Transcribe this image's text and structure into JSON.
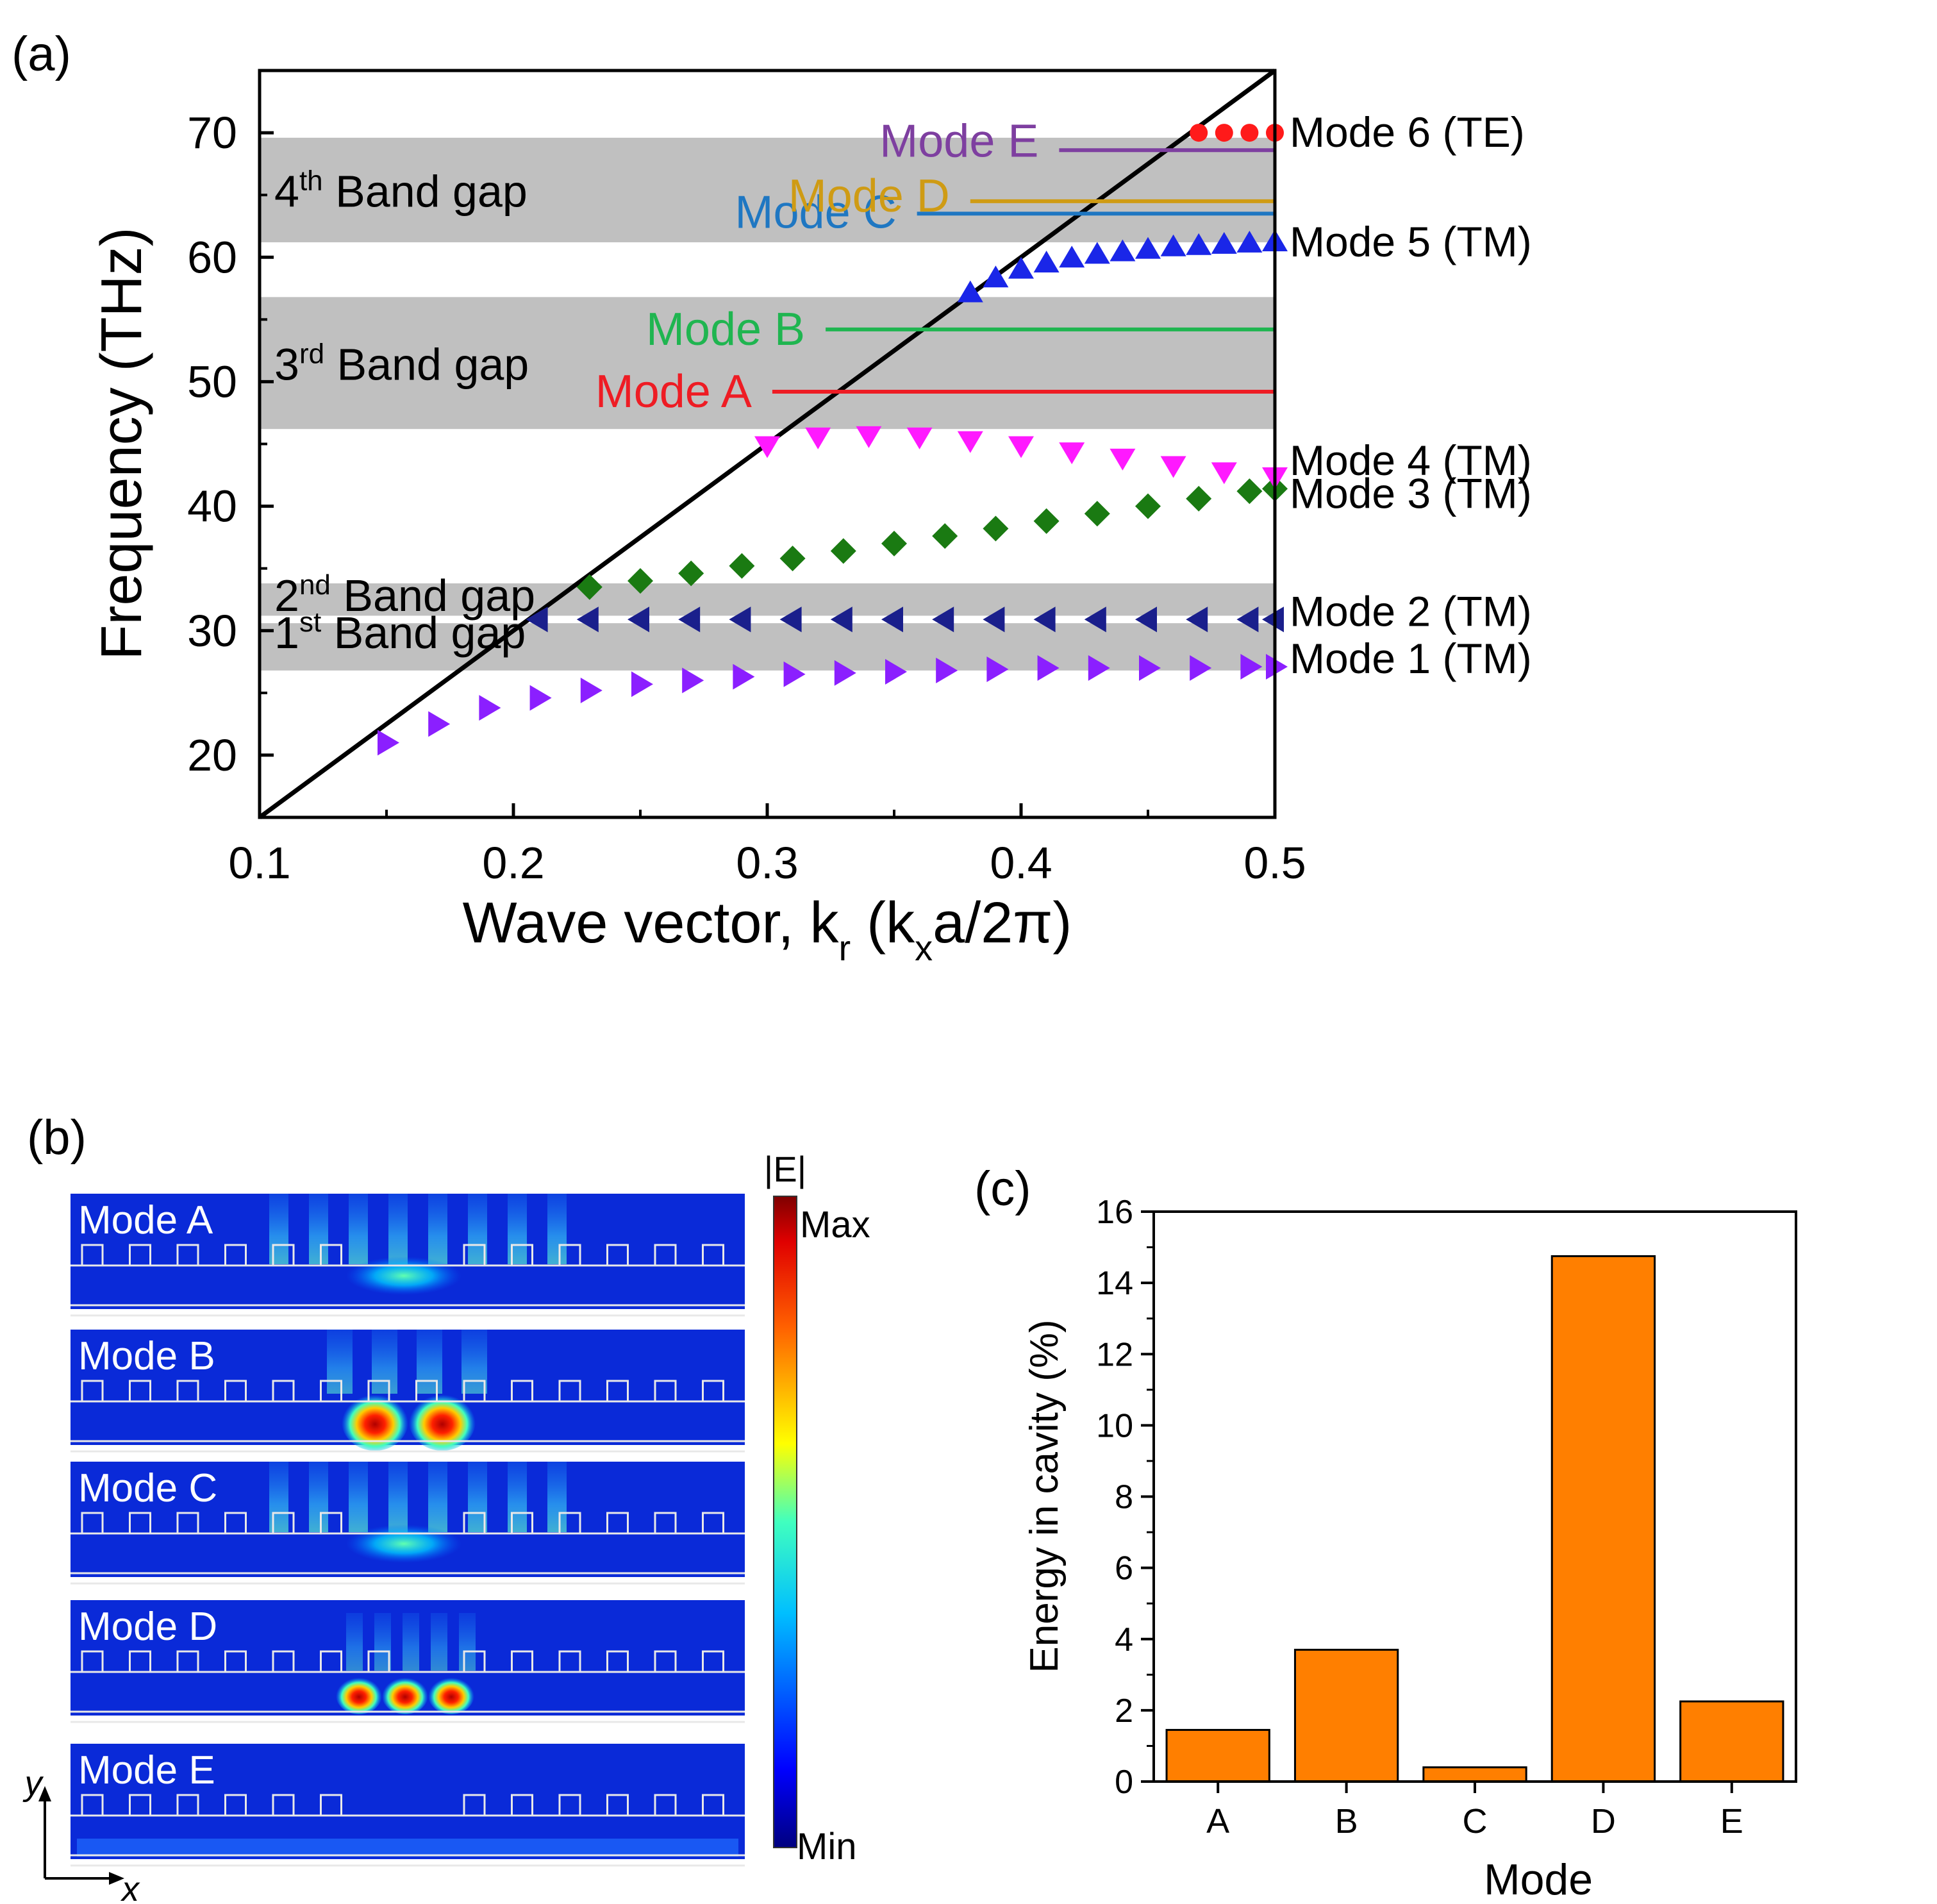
{
  "panels": {
    "a": "(a)",
    "b": "(b)",
    "c": "(c)"
  },
  "chart_data": [
    {
      "type": "scatter",
      "panel": "(a)",
      "xlabel": "Wave vector, k_r (k_x a/2π)",
      "ylabel": "Frequency (THz)",
      "xlim": [
        0.1,
        0.5
      ],
      "ylim": [
        15,
        75
      ],
      "xticks": [
        "0.1",
        "0.2",
        "0.3",
        "0.4",
        "0.5"
      ],
      "yticks": [
        "20",
        "30",
        "40",
        "50",
        "60",
        "70"
      ],
      "light_line": {
        "x": [
          0.1,
          0.5
        ],
        "y": [
          15,
          75
        ]
      },
      "band_gaps": [
        {
          "label": "1st Band gap",
          "num": "1",
          "sup": "st",
          "rest": " Band gap",
          "y0": 26.8,
          "y1": 30.6
        },
        {
          "label": "2nd Band gap",
          "num": "2",
          "sup": "nd",
          "rest": " Band gap",
          "y0": 31.2,
          "y1": 33.8
        },
        {
          "label": "3rd Band gap",
          "num": "3",
          "sup": "rd",
          "rest": " Band gap",
          "y0": 46.2,
          "y1": 56.8
        },
        {
          "label": "4th Band gap",
          "num": "4",
          "sup": "th",
          "rest": " Band gap",
          "y0": 61.2,
          "y1": 69.6
        }
      ],
      "cavity_modes": [
        {
          "label": "Mode A",
          "freq": 49.2,
          "x_start": 0.302,
          "color": "#ee1c24"
        },
        {
          "label": "Mode B",
          "freq": 54.2,
          "x_start": 0.323,
          "color": "#1fb550"
        },
        {
          "label": "Mode C",
          "freq": 63.5,
          "x_start": 0.359,
          "color": "#1f77c2"
        },
        {
          "label": "Mode D",
          "freq": 64.5,
          "x_start": 0.38,
          "color": "#cf9b14"
        },
        {
          "label": "Mode E",
          "freq": 68.6,
          "x_start": 0.415,
          "color": "#7e3fa0"
        }
      ],
      "series": [
        {
          "name": "Mode 1 (TM)",
          "marker": "tri-right",
          "color": "#8b1fff",
          "x": [
            0.15,
            0.17,
            0.19,
            0.21,
            0.23,
            0.25,
            0.27,
            0.29,
            0.31,
            0.33,
            0.35,
            0.37,
            0.39,
            0.41,
            0.43,
            0.45,
            0.47,
            0.49,
            0.5
          ],
          "y": [
            21.0,
            22.5,
            23.8,
            24.6,
            25.2,
            25.7,
            26.0,
            26.3,
            26.5,
            26.6,
            26.7,
            26.8,
            26.9,
            27.0,
            27.0,
            27.0,
            27.0,
            27.1,
            27.1
          ]
        },
        {
          "name": "Mode 2 (TM)",
          "marker": "tri-left",
          "color": "#1a1f8c",
          "x": [
            0.21,
            0.23,
            0.25,
            0.27,
            0.29,
            0.31,
            0.33,
            0.35,
            0.37,
            0.39,
            0.41,
            0.43,
            0.45,
            0.47,
            0.49,
            0.5
          ],
          "y": [
            30.9,
            30.9,
            30.9,
            30.9,
            30.9,
            30.9,
            30.9,
            30.9,
            30.9,
            30.9,
            30.9,
            30.9,
            30.9,
            30.9,
            30.9,
            30.9
          ]
        },
        {
          "name": "Mode 3 (TM)",
          "marker": "diamond",
          "color": "#1a7a12",
          "x": [
            0.23,
            0.25,
            0.27,
            0.29,
            0.31,
            0.33,
            0.35,
            0.37,
            0.39,
            0.41,
            0.43,
            0.45,
            0.47,
            0.49,
            0.5
          ],
          "y": [
            33.5,
            34.0,
            34.6,
            35.2,
            35.8,
            36.4,
            37.0,
            37.6,
            38.2,
            38.8,
            39.4,
            40.0,
            40.6,
            41.2,
            41.4
          ]
        },
        {
          "name": "Mode 4 (TM)",
          "marker": "tri-down",
          "color": "#ff19ff",
          "x": [
            0.3,
            0.32,
            0.34,
            0.36,
            0.38,
            0.4,
            0.42,
            0.44,
            0.46,
            0.48,
            0.5
          ],
          "y": [
            44.9,
            45.6,
            45.7,
            45.6,
            45.3,
            44.9,
            44.4,
            43.9,
            43.3,
            42.8,
            42.4
          ]
        },
        {
          "name": "Mode 5 (TM)",
          "marker": "tri-up",
          "color": "#1a26e8",
          "x": [
            0.38,
            0.39,
            0.4,
            0.41,
            0.42,
            0.43,
            0.44,
            0.45,
            0.46,
            0.47,
            0.48,
            0.49,
            0.5
          ],
          "y": [
            57.1,
            58.3,
            59.0,
            59.5,
            59.9,
            60.2,
            60.4,
            60.6,
            60.8,
            60.9,
            61.0,
            61.1,
            61.2
          ]
        },
        {
          "name": "Mode 6 (TE)",
          "marker": "circle",
          "color": "#ff1a1a",
          "x": [
            0.47,
            0.48,
            0.49,
            0.5
          ],
          "y": [
            70.0,
            70.0,
            70.0,
            70.0
          ]
        }
      ]
    },
    {
      "type": "heatmap",
      "panel": "(b)",
      "title": "|E|",
      "colorbar": {
        "max_label": "Max",
        "min_label": "Min"
      },
      "panels": [
        "Mode A",
        "Mode B",
        "Mode C",
        "Mode D",
        "Mode E"
      ],
      "axes": {
        "y": "y",
        "x": "x"
      }
    },
    {
      "type": "bar",
      "panel": "(c)",
      "categories": [
        "A",
        "B",
        "C",
        "D",
        "E"
      ],
      "values": [
        1.45,
        3.7,
        0.4,
        14.75,
        2.25
      ],
      "xlabel": "Mode",
      "ylabel": "Energy in cavity (%)",
      "ylim": [
        0,
        16
      ],
      "yticks": [
        "0",
        "2",
        "4",
        "6",
        "8",
        "10",
        "12",
        "14",
        "16"
      ],
      "bar_color": "#ff7f00"
    }
  ]
}
